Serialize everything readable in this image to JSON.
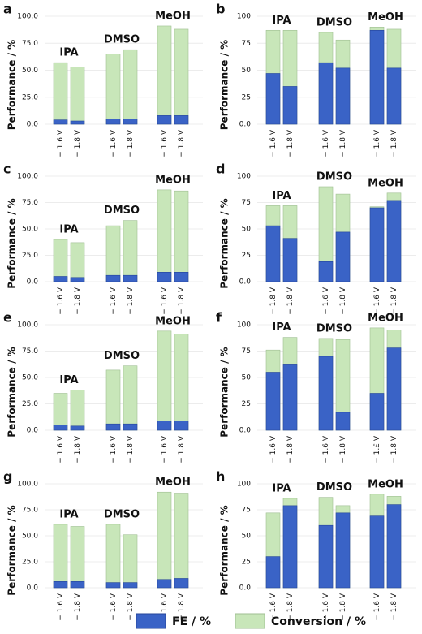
{
  "legend": [
    {
      "name": "FE / %",
      "color": "#3a63c6"
    },
    {
      "name": "Conversion / %",
      "color": "#c8e6b9"
    }
  ],
  "chart_data": [
    {
      "type": "bar",
      "label": "a",
      "ylabel": "Performance / %",
      "groups": [
        "IPA",
        "DMSO",
        "MeOH"
      ],
      "grid": true,
      "categories": [
        "− 1.6 V",
        "− 1.8 V",
        "− 1.6 V",
        "− 1.8 V",
        "− 1.6 V",
        "− 1.8 V"
      ],
      "series": [
        {
          "values": [
            4,
            3,
            5,
            5,
            8,
            8
          ]
        },
        {
          "values": [
            57,
            53,
            65,
            69,
            91,
            88
          ]
        }
      ],
      "ylim": [
        0,
        100
      ],
      "yticks": [
        {
          "value": 0,
          "label": "0.0"
        },
        {
          "value": 25,
          "label": "25.0"
        },
        {
          "value": 50,
          "label": "50.0"
        },
        {
          "value": 75,
          "label": "75.0"
        },
        {
          "value": 100,
          "label": "100.0"
        }
      ]
    },
    {
      "type": "bar",
      "label": "b",
      "ylabel": "Performance / %",
      "groups": [
        "IPA",
        "DMSO",
        "MeOH"
      ],
      "grid": true,
      "categories": [
        "− 1.6 V",
        "− 1.8 V",
        "− 1.6 V",
        "− 1.8 V",
        "− 1.6 V",
        "− 1.8 V"
      ],
      "series": [
        {
          "values": [
            47,
            35,
            57,
            52,
            87,
            52
          ]
        },
        {
          "values": [
            87,
            87,
            85,
            78,
            90,
            88
          ]
        }
      ],
      "ylim": [
        0,
        100
      ],
      "yticks": [
        {
          "value": 0,
          "label": "0.0"
        },
        25,
        50,
        75,
        100
      ]
    },
    {
      "type": "bar",
      "label": "c",
      "ylabel": "Performance / %",
      "groups": [
        "IPA",
        "DMSO",
        "MeOH"
      ],
      "grid": true,
      "categories": [
        "− 1.6 V",
        "− 1.8 V",
        "− 1.6 V",
        "− 1.8 V",
        "− 1.6 V",
        "− 1.8 V"
      ],
      "series": [
        {
          "values": [
            5,
            4,
            6,
            6,
            9,
            9
          ]
        },
        {
          "values": [
            40,
            37,
            53,
            58,
            87,
            86
          ]
        }
      ],
      "ylim": [
        0,
        100
      ],
      "yticks": [
        {
          "value": 0,
          "label": "0.0"
        },
        {
          "value": 25,
          "label": "25.0"
        },
        {
          "value": 50,
          "label": "50.0"
        },
        {
          "value": 75,
          "label": "75.0"
        },
        {
          "value": 100,
          "label": "100.0"
        }
      ]
    },
    {
      "type": "bar",
      "label": "d",
      "ylabel": "Performance / %",
      "groups": [
        "IPA",
        "DMSO",
        "MeOH"
      ],
      "grid": true,
      "categories": [
        "− 1.8 V",
        "− 1.8 V",
        "− 1.6 V",
        "− 1.8 V",
        "− 1.6 V",
        "− 1.8 V"
      ],
      "series": [
        {
          "values": [
            53,
            41,
            19,
            47,
            70,
            77
          ]
        },
        {
          "values": [
            72,
            72,
            90,
            83,
            71,
            84
          ]
        }
      ],
      "ylim": [
        0,
        100
      ],
      "yticks": [
        {
          "value": 0,
          "label": "0.0"
        },
        25,
        50,
        75,
        100
      ]
    },
    {
      "type": "bar",
      "label": "e",
      "ylabel": "Performance / %",
      "groups": [
        "IPA",
        "DMSO",
        "MeOH"
      ],
      "grid": true,
      "categories": [
        "− 1.6 V",
        "− 1.8 V",
        "− 1.6 V",
        "− 1.8 V",
        "− 1.6 V",
        "− 1.8 V"
      ],
      "series": [
        {
          "values": [
            5,
            4,
            6,
            6,
            9,
            9
          ]
        },
        {
          "values": [
            35,
            38,
            57,
            61,
            94,
            91
          ]
        }
      ],
      "ylim": [
        0,
        100
      ],
      "yticks": [
        {
          "value": 0,
          "label": "0.0"
        },
        {
          "value": 25,
          "label": "25.0"
        },
        {
          "value": 50,
          "label": "50.0"
        },
        {
          "value": 75,
          "label": "75.0"
        },
        {
          "value": 100,
          "label": "100.0"
        }
      ]
    },
    {
      "type": "bar",
      "label": "f",
      "ylabel": "Performance / %",
      "groups": [
        "IPA",
        "DMSO",
        "MeOH"
      ],
      "grid": true,
      "categories": [
        "− 1.6 V",
        "− 1.8 V",
        "− 1.6 V",
        "− 1.8 V",
        "− 1.£ V",
        "− 1.8 V"
      ],
      "series": [
        {
          "values": [
            55,
            62,
            70,
            17,
            35,
            78
          ]
        },
        {
          "values": [
            76,
            88,
            87,
            86,
            97,
            95
          ]
        }
      ],
      "ylim": [
        0,
        100
      ],
      "yticks": [
        {
          "value": 0,
          "label": "0.0"
        },
        25,
        50,
        75,
        100
      ]
    },
    {
      "type": "bar",
      "label": "g",
      "ylabel": "Performance / %",
      "groups": [
        "IPA",
        "DMSO",
        "MeOH"
      ],
      "grid": true,
      "categories": [
        "− 1.6 V",
        "− 1.8 V",
        "− 1.6 V",
        "− 1.8 V",
        "− 1.6 V",
        "− 1.8 V"
      ],
      "series": [
        {
          "values": [
            6,
            6,
            5,
            5,
            8,
            9
          ]
        },
        {
          "values": [
            61,
            59,
            61,
            51,
            92,
            91
          ]
        }
      ],
      "ylim": [
        0,
        100
      ],
      "yticks": [
        {
          "value": 0,
          "label": "0.0"
        },
        {
          "value": 25,
          "label": "25.0"
        },
        {
          "value": 50,
          "label": "50.0"
        },
        {
          "value": 75,
          "label": "75.0"
        },
        {
          "value": 100,
          "label": "100.0"
        }
      ]
    },
    {
      "type": "bar",
      "label": "h",
      "ylabel": "Performance / %",
      "groups": [
        "IPA",
        "DMSO",
        "MeOH"
      ],
      "grid": true,
      "categories": [
        "− 1.6 V",
        "− 1.8 V",
        "− 1.6 V",
        "− 1.8 V",
        "− 1.6 V",
        "− 1.8 V"
      ],
      "series": [
        {
          "values": [
            30,
            79,
            60,
            72,
            69,
            80
          ]
        },
        {
          "values": [
            72,
            86,
            87,
            79,
            90,
            88
          ]
        }
      ],
      "ylim": [
        0,
        100
      ],
      "yticks": [
        {
          "value": 0,
          "label": "0.0"
        },
        25,
        50,
        75,
        100
      ]
    }
  ]
}
